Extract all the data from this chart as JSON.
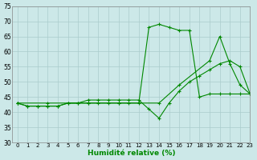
{
  "xlabel": "Humidité relative (%)",
  "background_color": "#cce8e8",
  "grid_color": "#aacccc",
  "line_color": "#008800",
  "xlim": [
    -0.5,
    23
  ],
  "ylim": [
    30,
    75
  ],
  "yticks": [
    30,
    35,
    40,
    45,
    50,
    55,
    60,
    65,
    70,
    75
  ],
  "xticks": [
    0,
    1,
    2,
    3,
    4,
    5,
    6,
    7,
    8,
    9,
    10,
    11,
    12,
    13,
    14,
    15,
    16,
    17,
    18,
    19,
    20,
    21,
    22,
    23
  ],
  "series1": {
    "x": [
      0,
      1,
      2,
      3,
      4,
      5,
      6,
      7,
      8,
      9,
      10,
      11,
      12,
      13,
      14,
      15,
      16,
      17,
      18,
      19,
      20,
      21,
      22,
      23
    ],
    "y": [
      43,
      42,
      42,
      42,
      42,
      43,
      43,
      43,
      43,
      43,
      43,
      43,
      43,
      68,
      69,
      68,
      67,
      67,
      45,
      46,
      46,
      46,
      46,
      46
    ]
  },
  "series2": {
    "x": [
      0,
      1,
      2,
      3,
      4,
      5,
      6,
      7,
      8,
      9,
      10,
      11,
      12,
      13,
      14,
      15,
      16,
      17,
      18,
      19,
      20,
      21,
      22,
      23
    ],
    "y": [
      43,
      42,
      42,
      42,
      42,
      43,
      43,
      44,
      44,
      44,
      44,
      44,
      44,
      41,
      38,
      43,
      47,
      50,
      52,
      54,
      56,
      57,
      55,
      46
    ]
  },
  "series3": {
    "x": [
      0,
      3,
      7,
      10,
      14,
      16,
      19,
      20,
      21,
      22,
      23
    ],
    "y": [
      43,
      43,
      43,
      43,
      43,
      49,
      57,
      65,
      56,
      49,
      46
    ]
  }
}
